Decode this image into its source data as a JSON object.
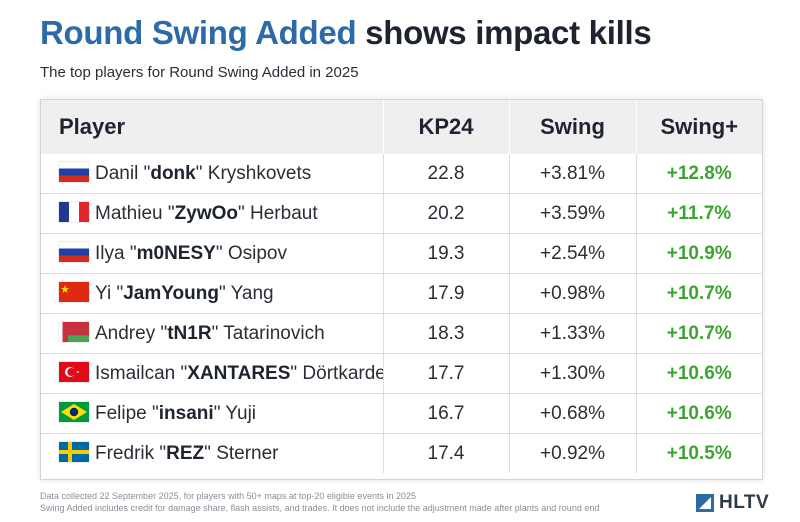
{
  "header": {
    "title_accent": "Round Swing Added",
    "title_rest": "shows impact kills",
    "subtitle": "The top players for Round Swing Added in 2025"
  },
  "chart_data": {
    "type": "table",
    "columns": [
      "Player",
      "KP24",
      "Swing",
      "Swing+"
    ],
    "rows": [
      {
        "first": "Danil",
        "nick": "donk",
        "last": "Kryshkovets",
        "flag": "russia-flag",
        "kp24": "22.8",
        "swing": "+3.81%",
        "swing_plus": "+12.8%"
      },
      {
        "first": "Mathieu",
        "nick": "ZywOo",
        "last": "Herbaut",
        "flag": "france-flag",
        "kp24": "20.2",
        "swing": "+3.59%",
        "swing_plus": "+11.7%"
      },
      {
        "first": "Ilya",
        "nick": "m0NESY",
        "last": "Osipov",
        "flag": "russia-flag",
        "kp24": "19.3",
        "swing": "+2.54%",
        "swing_plus": "+10.9%"
      },
      {
        "first": "Yi",
        "nick": "JamYoung",
        "last": "Yang",
        "flag": "china-flag",
        "kp24": "17.9",
        "swing": "+0.98%",
        "swing_plus": "+10.7%"
      },
      {
        "first": "Andrey",
        "nick": "tN1R",
        "last": "Tatarinovich",
        "flag": "belarus-flag",
        "kp24": "18.3",
        "swing": "+1.33%",
        "swing_plus": "+10.7%"
      },
      {
        "first": "Ismailcan",
        "nick": "XANTARES",
        "last": "Dörtkardeş",
        "flag": "turkey-flag",
        "kp24": "17.7",
        "swing": "+1.30%",
        "swing_plus": "+10.6%"
      },
      {
        "first": "Felipe",
        "nick": "insani",
        "last": "Yuji",
        "flag": "brazil-flag",
        "kp24": "16.7",
        "swing": "+0.68%",
        "swing_plus": "+10.6%"
      },
      {
        "first": "Fredrik",
        "nick": "REZ",
        "last": "Sterner",
        "flag": "sweden-flag",
        "kp24": "17.4",
        "swing": "+0.92%",
        "swing_plus": "+10.5%"
      }
    ]
  },
  "footer": {
    "note_line1": "Data collected 22 September 2025, for players with 50+ maps at top-20 eligible events in 2025",
    "note_line2": "Swing Added includes credit for damage share, flash assists, and trades. It does not include the adjustment made after plants and round end",
    "brand": "HLTV"
  },
  "colors": {
    "accent": "#2c6aa8",
    "positive": "#3aa52f"
  }
}
